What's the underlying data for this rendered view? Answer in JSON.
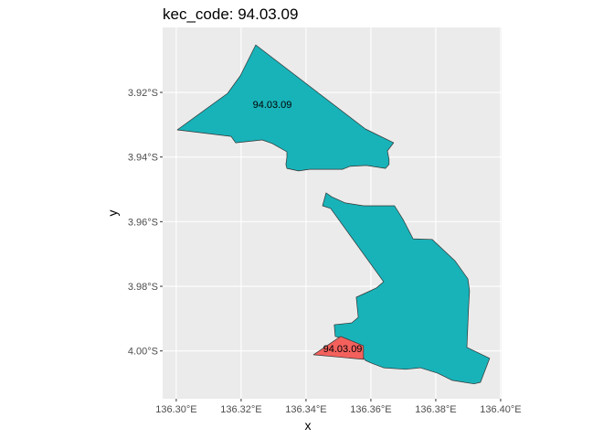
{
  "chart_data": {
    "type": "map",
    "title": "kec_code: 94.03.09",
    "xlabel": "x",
    "ylabel": "y",
    "xlim": [
      136.2958,
      136.4003
    ],
    "ylim_south": [
      3.8999,
      4.0148
    ],
    "grid": true,
    "x_ticks": [
      {
        "value": 136.3,
        "label": "136.30°E"
      },
      {
        "value": 136.32,
        "label": "136.32°E"
      },
      {
        "value": 136.34,
        "label": "136.34°E"
      },
      {
        "value": 136.36,
        "label": "136.36°E"
      },
      {
        "value": 136.38,
        "label": "136.38°E"
      },
      {
        "value": 136.4,
        "label": "136.40°E"
      }
    ],
    "y_ticks": [
      {
        "value": 3.92,
        "label": "3.92°S"
      },
      {
        "value": 3.94,
        "label": "3.94°S"
      },
      {
        "value": 3.96,
        "label": "3.96°S"
      },
      {
        "value": 3.98,
        "label": "3.98°S"
      },
      {
        "value": 4.0,
        "label": "4.00°S"
      }
    ],
    "colors": {
      "panel": "#EBEBEB",
      "grid": "#FFFFFF",
      "teal": "#18B3B9",
      "red": "#F4615D",
      "border": "#333333"
    },
    "polygons": [
      {
        "fill": "teal",
        "lonlat_south": [
          [
            136.3245,
            3.9053
          ],
          [
            136.3197,
            3.9149
          ],
          [
            136.3158,
            3.9203
          ],
          [
            136.3003,
            3.9316
          ],
          [
            136.3169,
            3.9336
          ],
          [
            136.3183,
            3.9356
          ],
          [
            136.3265,
            3.9347
          ],
          [
            136.3296,
            3.9358
          ],
          [
            136.3341,
            3.9384
          ],
          [
            136.3341,
            3.9401
          ],
          [
            136.3338,
            3.9423
          ],
          [
            136.3341,
            3.9435
          ],
          [
            136.3377,
            3.9443
          ],
          [
            136.3411,
            3.9438
          ],
          [
            136.3513,
            3.9438
          ],
          [
            136.3535,
            3.9429
          ],
          [
            136.3586,
            3.9426
          ],
          [
            136.3645,
            3.9435
          ],
          [
            136.3656,
            3.9423
          ],
          [
            136.3656,
            3.9407
          ],
          [
            136.3651,
            3.9381
          ],
          [
            136.367,
            3.9356
          ],
          [
            136.3583,
            3.9313
          ]
        ]
      },
      {
        "fill": "teal",
        "lonlat_south": [
          [
            136.3462,
            3.9511
          ],
          [
            136.3479,
            3.9523
          ],
          [
            136.3521,
            3.9542
          ],
          [
            136.3577,
            3.9551
          ],
          [
            136.3673,
            3.9551
          ],
          [
            136.3699,
            3.9593
          ],
          [
            136.373,
            3.9653
          ],
          [
            136.3789,
            3.9655
          ],
          [
            136.3859,
            3.9721
          ],
          [
            136.3899,
            3.9777
          ],
          [
            136.3904,
            3.9814
          ],
          [
            136.3901,
            3.9868
          ],
          [
            136.3896,
            3.9989
          ],
          [
            136.3966,
            4.0023
          ],
          [
            136.3938,
            4.0097
          ],
          [
            136.3918,
            4.0102
          ],
          [
            136.3851,
            4.0091
          ],
          [
            136.3806,
            4.0069
          ],
          [
            136.3752,
            4.0052
          ],
          [
            136.3707,
            4.0057
          ],
          [
            136.3639,
            4.0052
          ],
          [
            136.36,
            4.0037
          ],
          [
            136.3583,
            4.0029
          ],
          [
            136.3532,
            3.9967
          ],
          [
            136.349,
            3.9955
          ],
          [
            136.3487,
            3.9919
          ],
          [
            136.3541,
            3.9913
          ],
          [
            136.3561,
            3.9896
          ],
          [
            136.3555,
            3.9834
          ],
          [
            136.3592,
            3.9817
          ],
          [
            136.3617,
            3.9805
          ],
          [
            136.3639,
            3.9786
          ],
          [
            136.3476,
            3.9559
          ],
          [
            136.3451,
            3.9551
          ]
        ]
      },
      {
        "fill": "red",
        "lonlat_south": [
          [
            136.3423,
            4.0012
          ],
          [
            136.3507,
            3.9955
          ],
          [
            136.3577,
            3.9984
          ],
          [
            136.3577,
            4.0026
          ]
        ]
      }
    ],
    "labels": [
      {
        "text": "94.03.09",
        "lon": 136.3296,
        "lat_south": 3.9237
      },
      {
        "text": "94.03.09",
        "lon": 136.3513,
        "lat_south": 3.9992
      }
    ]
  }
}
